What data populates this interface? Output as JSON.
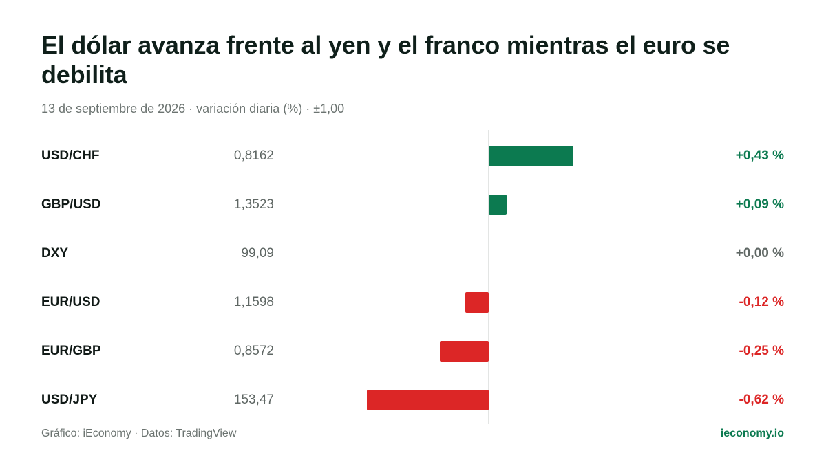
{
  "title": "El dólar avanza frente al yen y el franco mientras el euro se debilita",
  "subtitle": "13 de septiembre de 2026 · variación diaria (%) · ±1,00",
  "footer": {
    "source": "Gráfico: iEconomy · Datos: TradingView",
    "brand": "ieconomy.io"
  },
  "colors": {
    "positive": "#0c7a50",
    "negative": "#dc2626",
    "neutral": "#5f6764"
  },
  "chart_data": {
    "type": "bar",
    "orientation": "horizontal",
    "title": "El dólar avanza frente al yen y el franco mientras el euro se debilita",
    "subtitle": "13 de septiembre de 2026 · variación diaria (%) · ±1,00",
    "xlim": [
      -1.0,
      1.0
    ],
    "unit": "%",
    "grid": false,
    "categories": [
      "USD/CHF",
      "GBP/USD",
      "DXY",
      "EUR/USD",
      "EUR/GBP",
      "USD/JPY"
    ],
    "rows": [
      {
        "pair": "USD/CHF",
        "price": "0,8162",
        "change": 0.43,
        "change_label": "+0,43 %"
      },
      {
        "pair": "GBP/USD",
        "price": "1,3523",
        "change": 0.09,
        "change_label": "+0,09 %"
      },
      {
        "pair": "DXY",
        "price": "99,09",
        "change": 0.0,
        "change_label": "+0,00 %"
      },
      {
        "pair": "EUR/USD",
        "price": "1,1598",
        "change": -0.12,
        "change_label": "-0,12 %"
      },
      {
        "pair": "EUR/GBP",
        "price": "0,8572",
        "change": -0.25,
        "change_label": "-0,25 %"
      },
      {
        "pair": "USD/JPY",
        "price": "153,47",
        "change": -0.62,
        "change_label": "-0,62 %"
      }
    ]
  }
}
